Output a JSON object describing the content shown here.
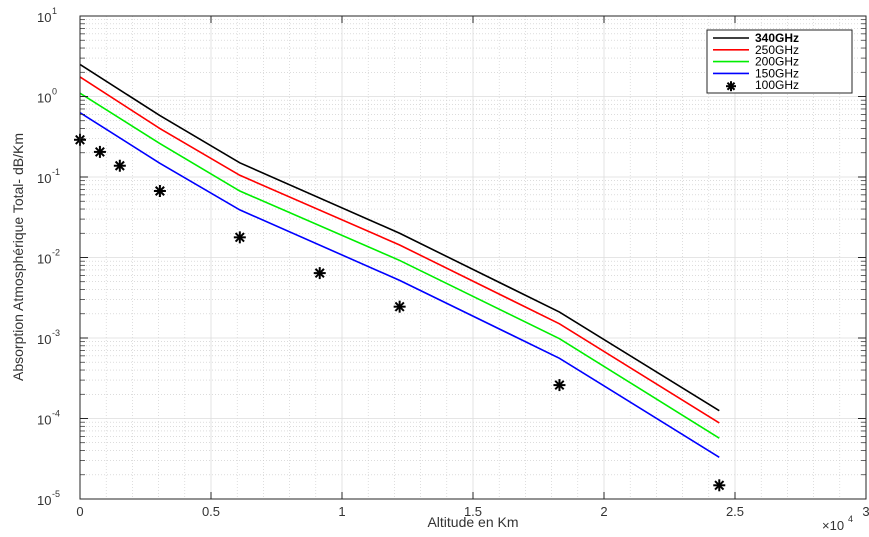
{
  "chart_data": {
    "type": "line",
    "xlabel": "Altitude en Km",
    "ylabel": "Absorption Atmosphérique Total- dB/Km",
    "x_multiplier_text": "×10",
    "x_multiplier_exponent": "4",
    "xlim": [
      0,
      30000
    ],
    "ylim": [
      1e-05,
      10
    ],
    "yscale": "log",
    "grid": true,
    "legend_position": "top-right",
    "x_tick_values": [
      0,
      5000,
      10000,
      15000,
      20000,
      25000,
      30000
    ],
    "x_tick_labels": [
      "0",
      "0.5",
      "1",
      "1.5",
      "2",
      "2.5",
      "3"
    ],
    "y_tick_labels": [
      {
        "base": "10",
        "exp": "-5",
        "value": 1e-05
      },
      {
        "base": "10",
        "exp": "-4",
        "value": 0.0001
      },
      {
        "base": "10",
        "exp": "-3",
        "value": 0.001
      },
      {
        "base": "10",
        "exp": "-2",
        "value": 0.01
      },
      {
        "base": "10",
        "exp": "-1",
        "value": 0.1
      },
      {
        "base": "10",
        "exp": "0",
        "value": 1
      },
      {
        "base": "10",
        "exp": "1",
        "value": 10
      }
    ],
    "series": [
      {
        "name": "340GHz",
        "color": "#000000",
        "style": "line",
        "x": [
          0,
          3050,
          6100,
          12200,
          18300,
          24400
        ],
        "y": [
          2.5,
          0.58,
          0.15,
          0.02,
          0.0021,
          0.000125
        ]
      },
      {
        "name": "250GHz",
        "color": "#ff0000",
        "style": "line",
        "x": [
          0,
          3050,
          6100,
          12200,
          18300,
          24400
        ],
        "y": [
          1.75,
          0.4,
          0.105,
          0.0143,
          0.0015,
          8.8e-05
        ]
      },
      {
        "name": "200GHz",
        "color": "#00ee00",
        "style": "line",
        "x": [
          0,
          3050,
          6100,
          12200,
          18300,
          24400
        ],
        "y": [
          1.1,
          0.26,
          0.067,
          0.0092,
          0.00098,
          5.7e-05
        ]
      },
      {
        "name": "150GHz",
        "color": "#0000ff",
        "style": "line",
        "x": [
          0,
          3050,
          6100,
          12200,
          18300,
          24400
        ],
        "y": [
          0.63,
          0.148,
          0.039,
          0.0052,
          0.00056,
          3.3e-05
        ]
      },
      {
        "name": "100GHz",
        "color": "#000000",
        "style": "marker",
        "x": [
          0,
          760,
          1520,
          3050,
          6100,
          9150,
          12200,
          18300,
          24400
        ],
        "y": [
          0.29,
          0.205,
          0.138,
          0.067,
          0.0178,
          0.0064,
          0.00245,
          0.00026,
          1.48e-05
        ]
      }
    ]
  }
}
